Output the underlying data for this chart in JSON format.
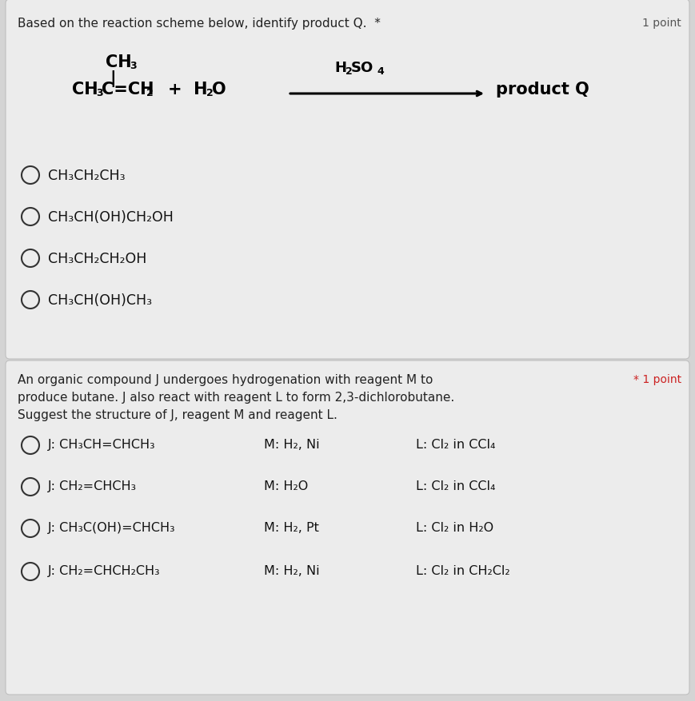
{
  "bg_color": "#d4d4d4",
  "card_bg": "#ececec",
  "text_color": "#222222",
  "title1": "Based on the reaction scheme below, identify product Q.  *",
  "title1_right": "1 point",
  "title2_line1": "An organic compound J undergoes hydrogenation with reagent M to",
  "title2_right": "* 1 point",
  "title2_line2": "produce butane. J also react with reagent L to form 2,3-dichlorobutane.",
  "title2_line3": "Suggest the structure of J, reagent M and reagent L.",
  "options1": [
    "CH₃CH₂CH₃",
    "CH₃CH(OH)CH₂OH",
    "CH₃CH₂CH₂OH",
    "CH₃CH(OH)CH₃"
  ],
  "options2_J": [
    "J: CH₃CH=CHCH₃",
    "J: CH₂=CHCH₃",
    "J: CH₃C(OH)=CHCH₃",
    "J: CH₂=CHCH₂CH₃"
  ],
  "options2_M": [
    "M: H₂, Ni",
    "M: H₂O",
    "M: H₂, Pt",
    "M: H₂, Ni"
  ],
  "options2_L": [
    "L: Cl₂ in CCl₄",
    "L: Cl₂ in CCl₄",
    "L: Cl₂ in H₂O",
    "L: Cl₂ in CH₂Cl₂"
  ]
}
